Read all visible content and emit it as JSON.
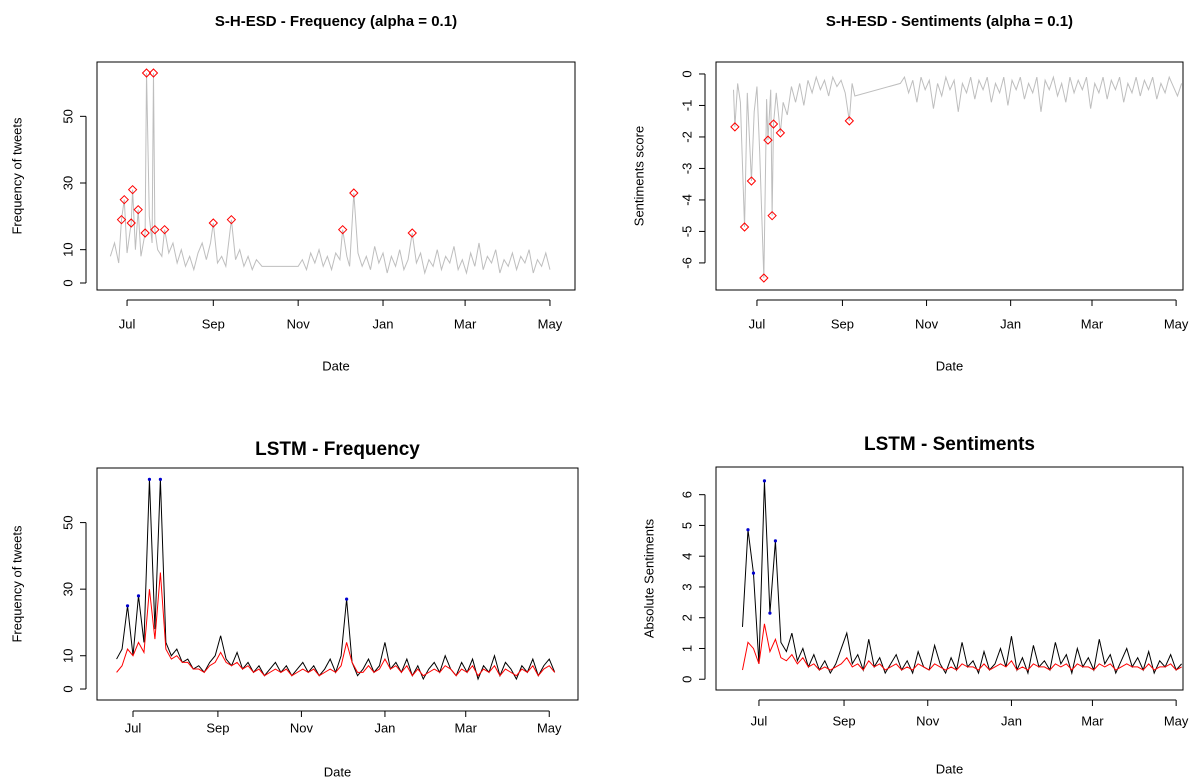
{
  "chart_data": [
    {
      "type": "line",
      "title": "S-H-ESD - Frequency (alpha = 0.1)",
      "xlabel": "Date",
      "ylabel": "Frequency of tweets",
      "x": [
        18,
        21,
        24,
        26,
        28,
        30,
        33,
        34,
        36,
        38,
        40,
        43,
        44,
        46,
        48,
        49,
        50,
        52,
        55,
        57,
        60,
        63,
        66,
        69,
        72,
        75,
        78,
        81,
        84,
        87,
        90,
        92,
        95,
        98,
        101,
        105,
        108,
        111,
        114,
        117,
        120,
        123,
        127,
        153,
        156,
        159,
        162,
        165,
        168,
        171,
        174,
        177,
        180,
        183,
        185,
        188,
        190,
        193,
        196,
        199,
        202,
        205,
        208,
        211,
        214,
        217,
        220,
        223,
        226,
        229,
        232,
        235,
        238,
        241,
        244,
        247,
        250,
        253,
        256,
        259,
        262,
        265,
        268,
        271,
        274,
        277,
        280,
        283,
        286,
        289,
        292,
        295,
        298,
        301,
        304,
        307,
        310,
        313,
        316,
        319,
        322,
        325,
        328,
        331,
        334
      ],
      "series": [
        {
          "color": "#bebebe",
          "values": [
            8,
            12,
            6,
            19,
            25,
            9,
            18,
            28,
            10,
            22,
            8,
            15,
            63,
            20,
            12,
            63,
            16,
            10,
            8,
            16,
            9,
            12,
            6,
            10,
            5,
            8,
            4,
            9,
            12,
            7,
            12,
            18,
            6,
            8,
            5,
            19,
            7,
            10,
            5,
            8,
            4,
            7,
            5,
            5,
            7,
            4,
            9,
            6,
            10,
            5,
            8,
            4,
            9,
            7,
            16,
            8,
            5,
            27,
            9,
            5,
            8,
            4,
            11,
            6,
            9,
            3,
            8,
            5,
            10,
            4,
            7,
            15,
            6,
            9,
            3,
            7,
            5,
            10,
            4,
            8,
            6,
            11,
            4,
            7,
            3,
            9,
            5,
            12,
            4,
            8,
            6,
            10,
            3,
            7,
            5,
            9,
            4,
            8,
            6,
            10,
            3,
            7,
            5,
            9,
            4
          ]
        }
      ],
      "anomalies": {
        "color": "#ff0000",
        "marker": "diamond",
        "x": [
          26,
          28,
          33,
          34,
          38,
          43,
          44,
          49,
          50,
          57,
          92,
          105,
          185,
          193,
          235
        ],
        "values": [
          19,
          25,
          18,
          28,
          22,
          15,
          63,
          63,
          16,
          16,
          18,
          19,
          16,
          27,
          15
        ]
      },
      "xlim": [
        8.4,
        352
      ],
      "ylim": [
        -2.1,
        66.3
      ],
      "xticks": [
        {
          "value": 30,
          "label": "Jul"
        },
        {
          "value": 92,
          "label": "Sep"
        },
        {
          "value": 153,
          "label": "Nov"
        },
        {
          "value": 214,
          "label": "Jan"
        },
        {
          "value": 273,
          "label": "Mar"
        },
        {
          "value": 334,
          "label": "May"
        }
      ],
      "yticks": [
        0,
        10,
        30,
        50
      ]
    },
    {
      "type": "line",
      "title": "S-H-ESD - Sentiments (alpha = 0.1)",
      "xlabel": "Date",
      "ylabel": "Sentiments score",
      "x": [
        13,
        14,
        16,
        18,
        21,
        23,
        26,
        28,
        30,
        32,
        35,
        37,
        38,
        40,
        41,
        42,
        44,
        47,
        49,
        52,
        55,
        58,
        61,
        64,
        67,
        70,
        73,
        76,
        79,
        82,
        85,
        88,
        91,
        94,
        97,
        99,
        101,
        134,
        137,
        140,
        143,
        146,
        149,
        152,
        155,
        158,
        161,
        164,
        167,
        170,
        173,
        176,
        179,
        182,
        185,
        188,
        191,
        194,
        197,
        200,
        203,
        206,
        209,
        212,
        215,
        218,
        221,
        224,
        227,
        230,
        233,
        236,
        239,
        242,
        245,
        248,
        251,
        254,
        257,
        260,
        263,
        266,
        269,
        272,
        275,
        278,
        281,
        284,
        287,
        290,
        293,
        296,
        299,
        302,
        305,
        308,
        311,
        314,
        317,
        320,
        323,
        326,
        329,
        332,
        335,
        338
      ],
      "series": [
        {
          "color": "#bebebe",
          "values": [
            -0.5,
            -1.68,
            -0.3,
            -0.9,
            -4.86,
            -0.6,
            -3.4,
            -1.2,
            -0.4,
            -2.5,
            -6.48,
            -0.8,
            -2.1,
            -0.5,
            -4.5,
            -1.59,
            -0.6,
            -1.87,
            -0.9,
            -1.3,
            -0.4,
            -0.9,
            -0.3,
            -1.0,
            -0.2,
            -0.6,
            -0.1,
            -0.5,
            -0.2,
            -0.7,
            -0.1,
            -0.4,
            -0.2,
            -0.6,
            -1.49,
            -0.3,
            -0.7,
            -0.3,
            -0.1,
            -0.6,
            -0.2,
            -0.9,
            -0.1,
            -0.5,
            -0.2,
            -1.1,
            -0.3,
            -0.7,
            -0.1,
            -0.5,
            -0.2,
            -1.2,
            -0.3,
            -0.6,
            -0.1,
            -0.8,
            -0.2,
            -0.5,
            -0.1,
            -0.9,
            -0.3,
            -0.6,
            -0.1,
            -1.0,
            -0.2,
            -0.5,
            -0.1,
            -0.8,
            -0.3,
            -0.6,
            -0.1,
            -1.2,
            -0.2,
            -0.5,
            -0.1,
            -0.7,
            -0.3,
            -0.9,
            -0.1,
            -0.6,
            -0.2,
            -0.5,
            -0.1,
            -1.1,
            -0.3,
            -0.6,
            -0.1,
            -0.8,
            -0.2,
            -0.5,
            -0.1,
            -0.9,
            -0.3,
            -0.6,
            -0.1,
            -0.7,
            -0.2,
            -0.5,
            -0.1,
            -0.8,
            -0.3,
            -0.6,
            -0.1,
            -0.4,
            -0.7,
            -0.3
          ]
        }
      ],
      "anomalies": {
        "color": "#ff0000",
        "marker": "diamond",
        "x": [
          14,
          21,
          26,
          35,
          38,
          41,
          42,
          47,
          97
        ],
        "values": [
          -1.68,
          -4.86,
          -3.4,
          -6.48,
          -2.1,
          -4.5,
          -1.59,
          -1.87,
          -1.49
        ]
      },
      "xlim": [
        0.3,
        339
      ],
      "ylim": [
        -6.86,
        0.38
      ],
      "xticks": [
        {
          "value": 30,
          "label": "Jul"
        },
        {
          "value": 92,
          "label": "Sep"
        },
        {
          "value": 153,
          "label": "Nov"
        },
        {
          "value": 214,
          "label": "Jan"
        },
        {
          "value": 273,
          "label": "Mar"
        },
        {
          "value": 334,
          "label": "May"
        }
      ],
      "yticks": [
        0,
        -1,
        -2,
        -3,
        -4,
        -5,
        -6
      ]
    },
    {
      "type": "line",
      "title": "LSTM - Frequency",
      "xlabel": "Date",
      "ylabel": "Frequency of tweets",
      "x": [
        18,
        22,
        26,
        30,
        34,
        38,
        42,
        46,
        50,
        54,
        58,
        62,
        66,
        70,
        74,
        78,
        82,
        86,
        90,
        94,
        98,
        102,
        106,
        110,
        114,
        118,
        122,
        126,
        130,
        134,
        138,
        142,
        146,
        150,
        154,
        158,
        162,
        166,
        170,
        174,
        178,
        182,
        186,
        190,
        194,
        198,
        202,
        206,
        210,
        214,
        218,
        222,
        226,
        230,
        234,
        238,
        242,
        246,
        250,
        254,
        258,
        262,
        266,
        270,
        274,
        278,
        282,
        286,
        290,
        294,
        298,
        302,
        306,
        310,
        314,
        318,
        322,
        326,
        330,
        334,
        338
      ],
      "series": [
        {
          "color": "#000000",
          "values": [
            9,
            12,
            25,
            10,
            28,
            14,
            63,
            18,
            63,
            14,
            10,
            12,
            8,
            9,
            6,
            7,
            5,
            8,
            10,
            16,
            9,
            7,
            11,
            6,
            8,
            5,
            7,
            4,
            6,
            8,
            5,
            7,
            4,
            6,
            8,
            5,
            7,
            4,
            6,
            9,
            5,
            10,
            27,
            8,
            4,
            6,
            9,
            5,
            7,
            14,
            6,
            8,
            5,
            9,
            4,
            7,
            3,
            6,
            8,
            5,
            10,
            6,
            4,
            8,
            5,
            9,
            3,
            7,
            5,
            10,
            4,
            8,
            6,
            3,
            7,
            5,
            9,
            4,
            7,
            9,
            5
          ]
        },
        {
          "color": "#ff0000",
          "values": [
            5,
            7,
            12,
            10,
            14,
            11,
            30,
            15,
            35,
            12,
            9,
            10,
            8,
            8,
            6,
            6,
            5,
            7,
            8,
            11,
            8,
            7,
            8,
            6,
            7,
            5,
            6,
            4,
            5,
            6,
            5,
            6,
            4,
            5,
            6,
            5,
            6,
            4,
            5,
            6,
            5,
            7,
            14,
            8,
            5,
            5,
            7,
            5,
            6,
            9,
            6,
            7,
            5,
            7,
            4,
            6,
            4,
            5,
            6,
            5,
            7,
            6,
            4,
            6,
            5,
            7,
            4,
            6,
            5,
            7,
            4,
            6,
            5,
            4,
            6,
            5,
            7,
            4,
            6,
            7,
            5
          ]
        }
      ],
      "anomalies": {
        "color": "#0000cd",
        "marker": "point",
        "x": [
          26,
          34,
          42,
          50,
          186
        ],
        "values": [
          25,
          28,
          63,
          63,
          27
        ]
      },
      "xlim": [
        3.7,
        355
      ],
      "ylim": [
        -3.3,
        66.4
      ],
      "xticks": [
        {
          "value": 30,
          "label": "Jul"
        },
        {
          "value": 92,
          "label": "Sep"
        },
        {
          "value": 153,
          "label": "Nov"
        },
        {
          "value": 214,
          "label": "Jan"
        },
        {
          "value": 273,
          "label": "Mar"
        },
        {
          "value": 334,
          "label": "May"
        }
      ],
      "yticks": [
        0,
        10,
        30,
        50
      ]
    },
    {
      "type": "line",
      "title": "LSTM - Sentiments",
      "xlabel": "Date",
      "ylabel": "Absolute  Sentiments",
      "x": [
        18,
        22,
        26,
        30,
        34,
        38,
        42,
        46,
        50,
        54,
        58,
        62,
        66,
        70,
        74,
        78,
        82,
        86,
        90,
        94,
        98,
        102,
        106,
        110,
        114,
        118,
        122,
        126,
        130,
        134,
        138,
        142,
        146,
        150,
        154,
        158,
        162,
        166,
        170,
        174,
        178,
        182,
        186,
        190,
        194,
        198,
        202,
        206,
        210,
        214,
        218,
        222,
        226,
        230,
        234,
        238,
        242,
        246,
        250,
        254,
        258,
        262,
        266,
        270,
        274,
        278,
        282,
        286,
        290,
        294,
        298,
        302,
        306,
        310,
        314,
        318,
        322,
        326,
        330,
        334,
        338
      ],
      "series": [
        {
          "color": "#000000",
          "values": [
            1.7,
            4.86,
            3.45,
            0.5,
            6.45,
            2.15,
            4.5,
            1.2,
            0.9,
            1.5,
            0.6,
            1.0,
            0.4,
            0.8,
            0.3,
            0.6,
            0.2,
            0.5,
            1.0,
            1.5,
            0.5,
            0.8,
            0.3,
            1.3,
            0.4,
            0.7,
            0.2,
            0.5,
            0.8,
            0.3,
            0.6,
            0.2,
            0.9,
            0.4,
            0.3,
            1.1,
            0.5,
            0.2,
            0.7,
            0.3,
            1.2,
            0.4,
            0.6,
            0.2,
            0.9,
            0.3,
            0.5,
            1.0,
            0.4,
            1.4,
            0.3,
            0.7,
            0.2,
            1.1,
            0.4,
            0.6,
            0.3,
            1.2,
            0.5,
            0.8,
            0.2,
            1.0,
            0.4,
            0.7,
            0.3,
            1.3,
            0.5,
            0.8,
            0.2,
            0.6,
            1.0,
            0.4,
            0.7,
            0.3,
            0.9,
            0.2,
            0.6,
            0.4,
            0.8,
            0.3,
            0.5
          ]
        },
        {
          "color": "#ff0000",
          "values": [
            0.3,
            1.2,
            1.0,
            0.5,
            1.8,
            0.9,
            1.3,
            0.7,
            0.6,
            0.8,
            0.5,
            0.7,
            0.4,
            0.5,
            0.3,
            0.4,
            0.3,
            0.4,
            0.5,
            0.7,
            0.4,
            0.5,
            0.3,
            0.6,
            0.4,
            0.5,
            0.3,
            0.4,
            0.5,
            0.3,
            0.4,
            0.3,
            0.5,
            0.4,
            0.3,
            0.5,
            0.4,
            0.3,
            0.4,
            0.3,
            0.5,
            0.4,
            0.4,
            0.3,
            0.5,
            0.3,
            0.4,
            0.5,
            0.4,
            0.6,
            0.3,
            0.4,
            0.3,
            0.5,
            0.4,
            0.4,
            0.3,
            0.5,
            0.4,
            0.5,
            0.3,
            0.5,
            0.4,
            0.4,
            0.3,
            0.5,
            0.4,
            0.5,
            0.3,
            0.4,
            0.5,
            0.4,
            0.4,
            0.3,
            0.5,
            0.3,
            0.4,
            0.4,
            0.5,
            0.3,
            0.4
          ]
        }
      ],
      "anomalies": {
        "color": "#0000cd",
        "marker": "point",
        "x": [
          22,
          26,
          34,
          38,
          42
        ],
        "values": [
          4.86,
          3.45,
          6.45,
          2.15,
          4.5
        ]
      },
      "xlim": [
        -1.3,
        339
      ],
      "ylim": [
        -0.35,
        6.9
      ],
      "xticks": [
        {
          "value": 30,
          "label": "Jul"
        },
        {
          "value": 92,
          "label": "Sep"
        },
        {
          "value": 153,
          "label": "Nov"
        },
        {
          "value": 214,
          "label": "Jan"
        },
        {
          "value": 273,
          "label": "Mar"
        },
        {
          "value": 334,
          "label": "May"
        }
      ],
      "yticks": [
        0,
        1,
        2,
        3,
        4,
        5,
        6
      ]
    }
  ]
}
